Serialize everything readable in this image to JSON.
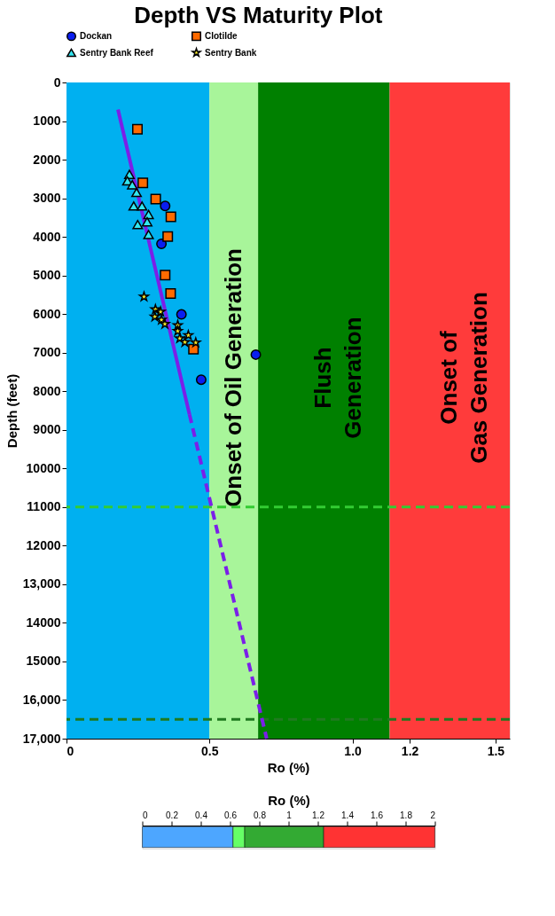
{
  "chart_data": [
    {
      "type": "scatter",
      "title": "Depth VS Maturity Plot",
      "xlabel": "Ro (%)",
      "ylabel": "Depth (feet)",
      "xlim": [
        0,
        1.55
      ],
      "xticks": [
        0,
        0.5,
        {
          "value": 1.0,
          "label": "1.0"
        },
        1.2,
        1.5
      ],
      "ylim": [
        17000,
        0
      ],
      "yticks": [
        0,
        1000,
        2000,
        3000,
        4000,
        5000,
        6000,
        7000,
        8000,
        9000,
        10000,
        11000,
        12000,
        {
          "value": 13000,
          "label": "13,000"
        },
        14000,
        15000,
        {
          "value": 16000,
          "label": "16,000"
        },
        {
          "value": 17000,
          "label": "17,000"
        }
      ],
      "grid": false,
      "legend": "top",
      "bands": [
        {
          "axis": "x",
          "from": 0,
          "to": 0.5,
          "label": null,
          "color": "#00b0f0"
        },
        {
          "axis": "x",
          "from": 0.5,
          "to": 0.67,
          "label": "Onset of Oil Generation",
          "color": "#a8f59a"
        },
        {
          "axis": "x",
          "from": 0.67,
          "to": 1.13,
          "label": "Flush\nGeneration",
          "color": "#008000"
        },
        {
          "axis": "x",
          "from": 1.13,
          "to": 1.55,
          "label": "Onset of\nGas Generation",
          "color": "#ff3b3b"
        }
      ],
      "ref_lines": [
        {
          "axis": "y",
          "value": 11000,
          "label": null,
          "color": "#33cc33",
          "line_style": "dashed"
        },
        {
          "axis": "y",
          "value": 16500,
          "label": null,
          "color": "#1f7a1f",
          "line_style": "dashed"
        }
      ],
      "series": [
        {
          "name": "Dockan",
          "type": "scatter",
          "marker": "circle",
          "color": "#0a1ef0",
          "x": [
            0.345,
            0.332,
            0.402,
            0.662,
            0.471
          ],
          "values": [
            3200,
            4180,
            6010,
            7050,
            7700
          ]
        },
        {
          "name": "Clotilde",
          "type": "scatter",
          "marker": "square",
          "color": "#ff6a00",
          "x": [
            0.248,
            0.267,
            0.312,
            0.365,
            0.354,
            0.345,
            0.364,
            0.444
          ],
          "values": [
            1210,
            2600,
            3020,
            3480,
            3990,
            4990,
            5470,
            6910
          ]
        },
        {
          "name": "Sentry Bank Reef",
          "type": "scatter",
          "marker": "triangle",
          "color": "#33e6f0",
          "x": [
            0.22,
            0.213,
            0.23,
            0.245,
            0.235,
            0.264,
            0.287,
            0.249,
            0.282,
            0.287
          ],
          "values": [
            2380,
            2550,
            2650,
            2850,
            3200,
            3200,
            3420,
            3680,
            3610,
            3940
          ]
        },
        {
          "name": "Sentry Bank",
          "type": "scatter",
          "marker": "star",
          "color": "#ffef2a",
          "x": [
            0.271,
            0.311,
            0.329,
            0.309,
            0.332,
            0.344,
            0.389,
            0.389,
            0.426,
            0.396,
            0.414,
            0.452
          ],
          "values": [
            5550,
            5880,
            5940,
            6070,
            6150,
            6260,
            6290,
            6440,
            6550,
            6630,
            6730,
            6740
          ]
        },
        {
          "type": "line",
          "line_style": "solid",
          "color": "#7b1fe8",
          "x": [
            0.18,
            0.43
          ],
          "values": [
            700,
            8600
          ]
        },
        {
          "type": "line",
          "line_style": "dashed",
          "color": "#7b1fe8",
          "x": [
            0.43,
            0.7
          ],
          "values": [
            8600,
            17000
          ]
        }
      ]
    },
    {
      "type": "bar",
      "orientation": "horizontal",
      "stacked": true,
      "xlabel": "Ro (%)",
      "xlim": [
        0,
        2
      ],
      "xticks": [
        0,
        0.2,
        0.4,
        0.6,
        0.8,
        1,
        1.2,
        1.4,
        1.6,
        1.8,
        2
      ],
      "categories": [
        null
      ],
      "series": [
        {
          "color": "#4da6ff",
          "values": [
            0.62
          ]
        },
        {
          "color": "#66ff66",
          "values": [
            0.08
          ]
        },
        {
          "color": "#33aa33",
          "values": [
            0.54
          ]
        },
        {
          "color": "#ff3333",
          "values": [
            0.76
          ]
        }
      ]
    }
  ]
}
